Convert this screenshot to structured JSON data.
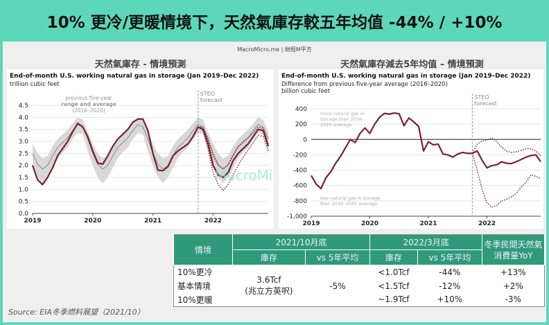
{
  "title": "10% 更冷/更暖情境下，天然氣庫存較五年均值 -44% / +10%",
  "brand": "MacroMicro.me | 財經M平方",
  "watermark": "MacroMicro",
  "source": "Source: EIA冬季燃料展望（2021/10）",
  "colors": {
    "actual": "#7a1f2b",
    "band": "#d8d8d8",
    "avg": "#888888",
    "header": "#5cd8b9",
    "table_header": "#2f9a7a"
  },
  "chart_data": [
    {
      "type": "line",
      "panel_title": "天然氣庫存 - 情境預測",
      "title": "End-of-month U.S. working natural gas in storage (Jan 2019–Dec 2022)",
      "ylabel": "trillion cubic feet",
      "ylim": [
        0,
        4.5
      ],
      "yticks": [
        "0.0",
        "0.5",
        "1.0",
        "1.5",
        "2.0",
        "2.5",
        "3.0",
        "3.5",
        "4.0",
        "4.5"
      ],
      "xticks": [
        "2019",
        "2020",
        "2021",
        "2022"
      ],
      "band_label": [
        "previous five-year",
        "range and average",
        "(2016–2020)"
      ],
      "forecast_label": [
        "STEO",
        "forecast"
      ],
      "forecast_start": "2021-10",
      "avg_by_month": [
        2.5,
        2.05,
        1.85,
        2.0,
        2.4,
        2.75,
        2.95,
        3.15,
        3.45,
        3.7,
        3.6,
        3.1
      ],
      "range_low_by_month": [
        2.0,
        1.5,
        1.25,
        1.5,
        1.9,
        2.3,
        2.55,
        2.75,
        3.1,
        3.35,
        3.3,
        2.6
      ],
      "range_high_by_month": [
        2.9,
        2.5,
        2.3,
        2.4,
        2.8,
        3.1,
        3.3,
        3.5,
        3.75,
        4.0,
        3.9,
        3.4
      ],
      "series": [
        {
          "name": "actual",
          "start": "2019-01",
          "values": [
            2.0,
            1.4,
            1.2,
            1.5,
            1.9,
            2.4,
            2.7,
            3.0,
            3.4,
            3.75,
            3.6,
            3.2,
            2.6,
            2.1,
            2.05,
            2.4,
            2.8,
            3.1,
            3.3,
            3.5,
            3.8,
            3.93,
            3.93,
            3.45,
            2.5,
            1.8,
            1.78,
            1.95,
            2.4,
            2.6,
            2.75,
            2.9,
            3.2,
            3.6
          ]
        },
        {
          "name": "base",
          "start": "2021-10",
          "values": [
            3.6,
            3.5,
            2.9,
            2.0,
            1.6,
            1.5,
            1.7,
            2.2,
            2.5,
            2.7,
            2.9,
            3.2,
            3.5,
            3.45,
            2.8
          ]
        },
        {
          "name": "cold",
          "start": "2021-10",
          "values": [
            3.6,
            3.45,
            2.7,
            1.7,
            1.2,
            0.95,
            1.2,
            1.6,
            2.0,
            2.35,
            2.65,
            2.95,
            3.25,
            3.2,
            2.6
          ]
        },
        {
          "name": "warm",
          "start": "2021-10",
          "values": [
            3.6,
            3.6,
            3.1,
            2.4,
            2.0,
            1.85,
            2.05,
            2.45,
            2.8,
            3.0,
            3.15,
            3.35,
            3.6,
            3.55,
            2.9
          ]
        }
      ]
    },
    {
      "type": "line",
      "panel_title": "天然氣庫存減去5年均值 – 情境預測",
      "title": "End-of-month U.S. working natural gas in storage (Jan 2019–Dec 2022)",
      "subtitle": "Difference from previous five-year average (2016–2020)",
      "ylabel": "billion cubic feet",
      "ylim": [
        -1000,
        400
      ],
      "yticks": [
        "-1,000",
        "-800",
        "-600",
        "-400",
        "-200",
        "0",
        "200",
        "400"
      ],
      "xticks": [
        "2019",
        "2020",
        "2021",
        "2022"
      ],
      "more_label": [
        "more natural gas in",
        "storage than 2016–",
        "2020 average"
      ],
      "less_label": [
        "less natural gas in storage",
        "than 2016–2020 average"
      ],
      "forecast_label": [
        "STEO",
        "forecast"
      ],
      "forecast_start": "2021-10",
      "series": [
        {
          "name": "actual",
          "start": "2019-01",
          "values": [
            -470,
            -580,
            -640,
            -500,
            -420,
            -310,
            -220,
            -110,
            0,
            -40,
            80,
            150,
            80,
            200,
            290,
            340,
            330,
            345,
            335,
            180,
            280,
            230,
            170,
            -150,
            -30,
            -70,
            -60,
            -190,
            -200,
            -230,
            -190,
            -170,
            -180,
            -180
          ]
        },
        {
          "name": "base",
          "start": "2021-10",
          "values": [
            -180,
            -150,
            -270,
            -370,
            -340,
            -330,
            -290,
            -310,
            -315,
            -290,
            -260,
            -230,
            -210,
            -200,
            -290
          ]
        },
        {
          "name": "cold",
          "start": "2021-10",
          "values": [
            -180,
            -400,
            -650,
            -830,
            -880,
            -860,
            -800,
            -780,
            -750,
            -700,
            -620,
            -560,
            -460,
            -480,
            -510
          ]
        },
        {
          "name": "warm",
          "start": "2021-10",
          "values": [
            -180,
            -60,
            -20,
            -10,
            20,
            -30,
            -100,
            -150,
            -170,
            -160,
            -140,
            -120,
            -120,
            -150,
            -210
          ]
        }
      ]
    }
  ],
  "table": {
    "h_scenario": "情境",
    "h_oct": "2021/10月底",
    "h_mar": "2022/3月底",
    "h_yoy": "冬季民間天然氣消費量YoY",
    "h_stock": "庫存",
    "h_vs": "vs 5年平均",
    "oct_stock": "3.6Tcf",
    "oct_unit": "(兆立方英呎)",
    "oct_vs": "-5%",
    "rows": [
      {
        "name": "10%更冷",
        "mar_stock": "<1.0Tcf",
        "mar_vs": "-44%",
        "yoy": "+13%"
      },
      {
        "name": "基本情境",
        "mar_stock": "<1.5Tcf",
        "mar_vs": "-12%",
        "yoy": "+2%"
      },
      {
        "name": "10%更暖",
        "mar_stock": "~1.9Tcf",
        "mar_vs": "+10%",
        "yoy": "-3%"
      }
    ]
  }
}
